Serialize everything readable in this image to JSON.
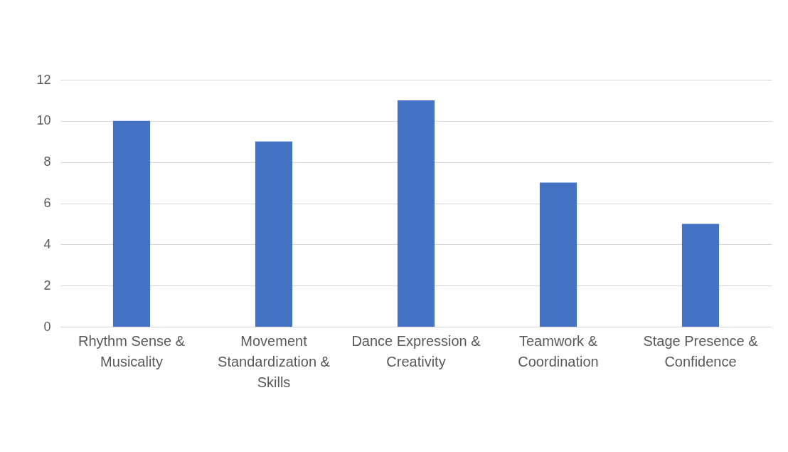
{
  "chart_data": {
    "type": "bar",
    "categories": [
      "Rhythm Sense & Musicality",
      "Movement Standardization & Skills",
      "Dance Expression & Creativity",
      "Teamwork & Coordination",
      "Stage Presence & Confidence"
    ],
    "values": [
      10,
      9,
      11,
      7,
      5
    ],
    "color": "#4472c4",
    "ylim": [
      0,
      12
    ],
    "yticks": [
      0,
      2,
      4,
      6,
      8,
      10,
      12
    ],
    "grid": "y"
  }
}
